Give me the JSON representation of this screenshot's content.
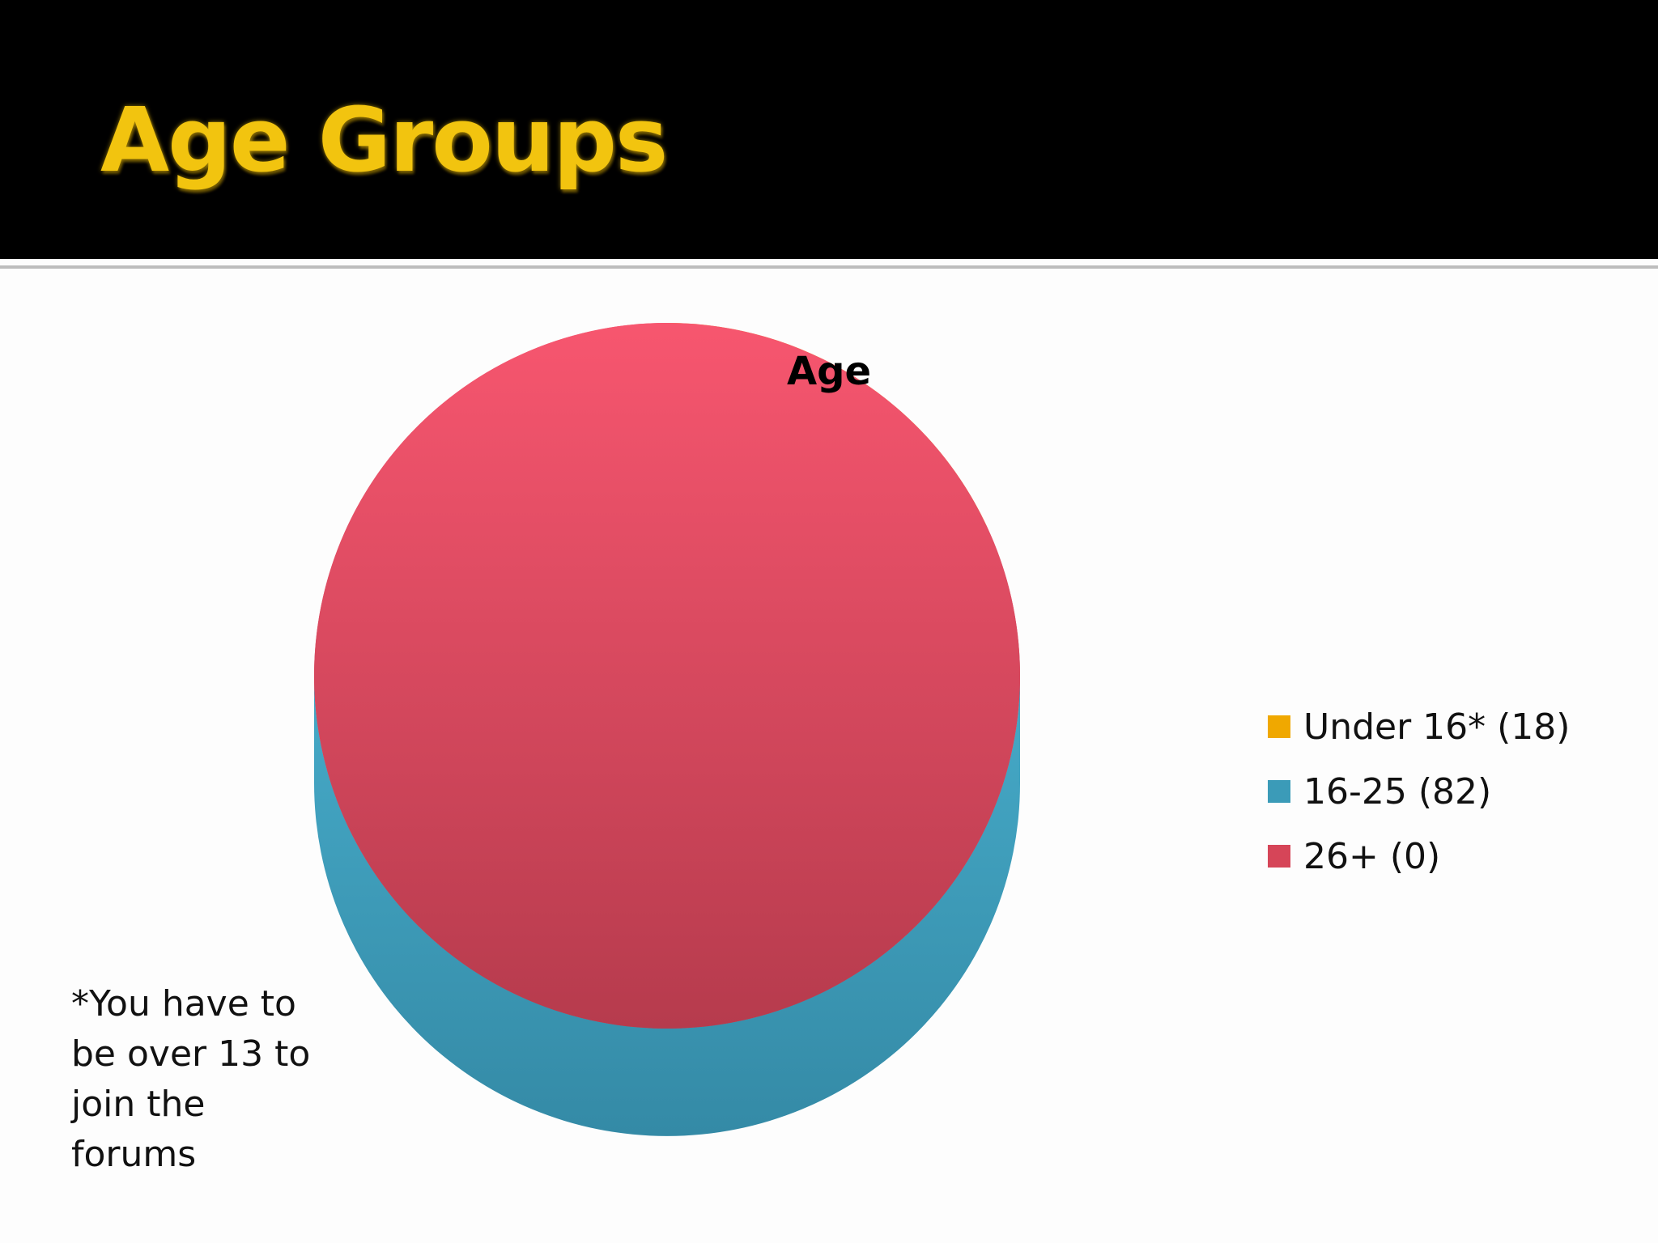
{
  "slide": {
    "title": "Age Groups",
    "footnote": "*You have to be over 13 to join the forums"
  },
  "colors": {
    "header_bg": "#000000",
    "title": "#f2c40f"
  },
  "chart_data": {
    "type": "pie",
    "style": "3d",
    "title": "Age",
    "categories": [
      "Under 16* (18)",
      "16-25 (82)",
      "26+ (0)"
    ],
    "values": [
      18,
      82,
      0
    ],
    "colors": [
      "#f0a800",
      "#3b9bb8",
      "#d64558"
    ],
    "legend_position": "right"
  }
}
